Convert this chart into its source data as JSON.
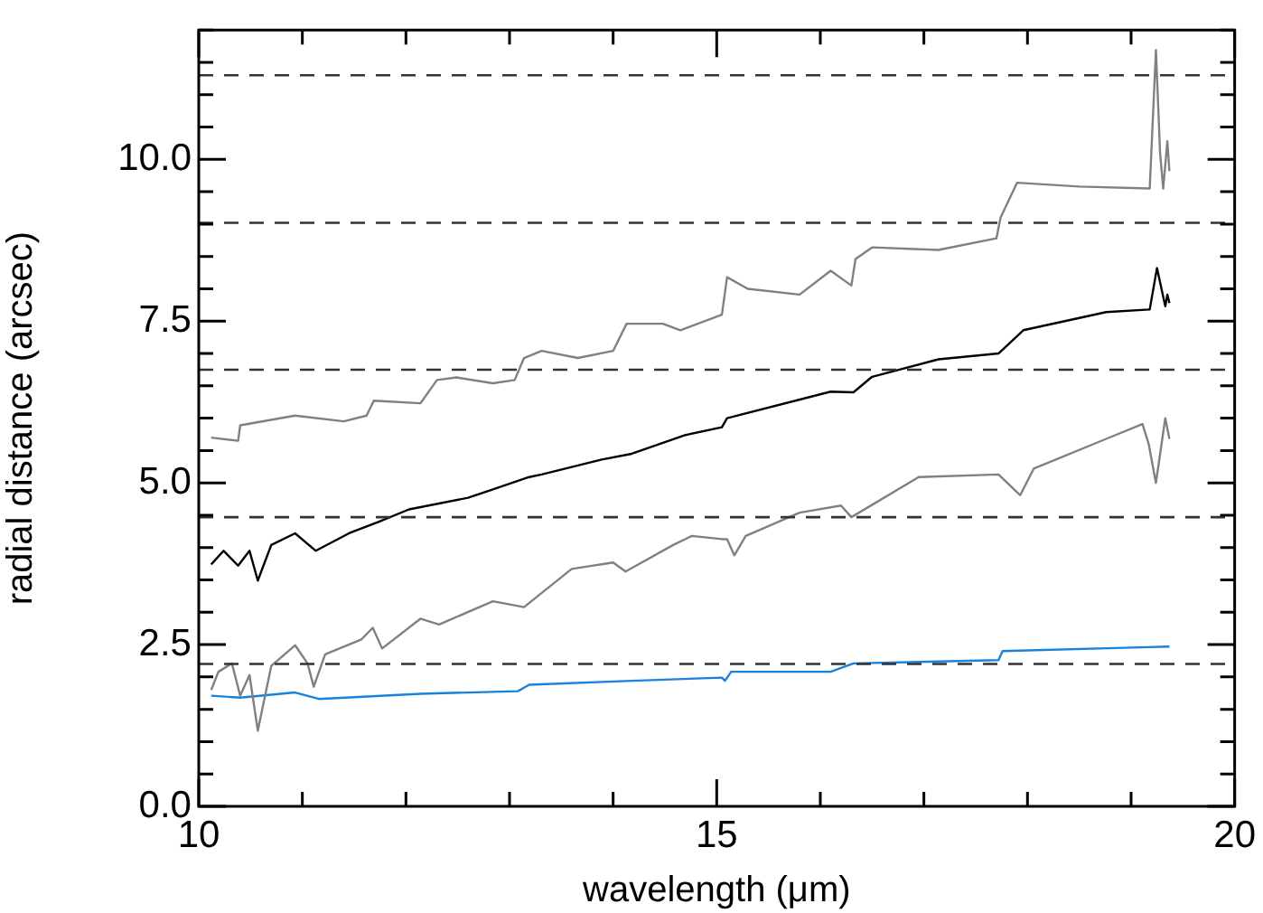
{
  "chart_data": {
    "type": "line",
    "xlabel": "wavelength (μm)",
    "ylabel": "radial distance (arcsec)",
    "xlim": [
      10,
      20
    ],
    "ylim": [
      0,
      12
    ],
    "marker": "none",
    "xticks": [
      10,
      {
        "value": 11,
        "label": null
      },
      {
        "value": 12,
        "label": null
      },
      {
        "value": 13,
        "label": null
      },
      {
        "value": 14,
        "label": null
      },
      15,
      {
        "value": 16,
        "label": null
      },
      {
        "value": 17,
        "label": null
      },
      {
        "value": 18,
        "label": null
      },
      {
        "value": 19,
        "label": null
      },
      20
    ],
    "yticks": [
      {
        "value": 0,
        "label": "0.0"
      },
      {
        "value": 0.5,
        "label": null
      },
      {
        "value": 1,
        "label": null
      },
      {
        "value": 1.5,
        "label": null
      },
      {
        "value": 2,
        "label": null
      },
      2.5,
      {
        "value": 3,
        "label": null
      },
      {
        "value": 3.5,
        "label": null
      },
      {
        "value": 4,
        "label": null
      },
      {
        "value": 4.5,
        "label": null
      },
      {
        "value": 5,
        "label": "5.0"
      },
      {
        "value": 5.5,
        "label": null
      },
      {
        "value": 6,
        "label": null
      },
      {
        "value": 6.5,
        "label": null
      },
      {
        "value": 7,
        "label": null
      },
      7.5,
      {
        "value": 8,
        "label": null
      },
      {
        "value": 8.5,
        "label": null
      },
      {
        "value": 9,
        "label": null
      },
      {
        "value": 9.5,
        "label": null
      },
      {
        "value": 10,
        "label": "10.0"
      },
      {
        "value": 10.5,
        "label": null
      },
      {
        "value": 11,
        "label": null
      },
      {
        "value": 11.5,
        "label": null
      },
      {
        "value": 12,
        "label": null
      }
    ],
    "series": [
      {
        "color": "#808080",
        "x": [
          10.12,
          10.38,
          10.4,
          10.93,
          11.4,
          11.62,
          11.69,
          12.14,
          12.3,
          12.49,
          12.84,
          13.05,
          13.14,
          13.31,
          13.66,
          14.0,
          14.13,
          14.48,
          14.65,
          15.05,
          15.1,
          15.3,
          15.8,
          16.1,
          16.3,
          16.34,
          16.5,
          17.14,
          17.7,
          17.74,
          17.9,
          18.5,
          19.18,
          19.24,
          19.28,
          19.31,
          19.35,
          19.37
        ],
        "values": [
          5.7,
          5.65,
          5.89,
          6.04,
          5.95,
          6.04,
          6.27,
          6.23,
          6.59,
          6.63,
          6.54,
          6.59,
          6.93,
          7.04,
          6.93,
          7.04,
          7.46,
          7.46,
          7.36,
          7.6,
          8.18,
          8.0,
          7.91,
          8.28,
          8.05,
          8.46,
          8.64,
          8.6,
          8.78,
          9.1,
          9.64,
          9.58,
          9.55,
          11.69,
          10.1,
          9.55,
          10.28,
          9.82
        ]
      },
      {
        "color": "#000000",
        "x": [
          10.12,
          10.24,
          10.38,
          10.49,
          10.57,
          10.7,
          10.93,
          11.13,
          11.45,
          11.74,
          12.03,
          12.6,
          12.84,
          13.19,
          13.31,
          13.89,
          14.18,
          14.7,
          15.05,
          15.1,
          16.1,
          16.32,
          16.5,
          17.14,
          17.72,
          17.96,
          18.76,
          19.18,
          19.25,
          19.33,
          19.35,
          19.37
        ],
        "values": [
          3.74,
          3.95,
          3.72,
          3.95,
          3.49,
          4.04,
          4.22,
          3.95,
          4.22,
          4.4,
          4.59,
          4.77,
          4.9,
          5.09,
          5.13,
          5.36,
          5.45,
          5.74,
          5.86,
          6.0,
          6.41,
          6.4,
          6.64,
          6.91,
          7.0,
          7.36,
          7.64,
          7.68,
          8.32,
          7.73,
          7.91,
          7.78
        ]
      },
      {
        "color": "#808080",
        "x": [
          10.12,
          10.19,
          10.32,
          10.4,
          10.49,
          10.57,
          10.7,
          10.93,
          11.05,
          11.11,
          11.22,
          11.57,
          11.68,
          11.77,
          12.14,
          12.32,
          12.84,
          13.14,
          13.6,
          14.0,
          14.12,
          14.58,
          14.76,
          15.05,
          15.1,
          15.17,
          15.28,
          15.8,
          16.2,
          16.3,
          16.95,
          17.72,
          17.93,
          18.06,
          18.76,
          19.11,
          19.17,
          19.24,
          19.33,
          19.37
        ],
        "values": [
          1.8,
          2.08,
          2.21,
          1.71,
          2.03,
          1.17,
          2.17,
          2.49,
          2.21,
          1.85,
          2.35,
          2.58,
          2.76,
          2.44,
          2.9,
          2.81,
          3.17,
          3.08,
          3.67,
          3.77,
          3.63,
          4.04,
          4.18,
          4.13,
          4.13,
          3.88,
          4.18,
          4.54,
          4.65,
          4.47,
          5.09,
          5.13,
          4.81,
          5.22,
          5.68,
          5.91,
          5.6,
          5.0,
          6.0,
          5.68
        ]
      },
      {
        "color": "#1a82dc",
        "x": [
          10.12,
          10.4,
          10.93,
          11.16,
          12.14,
          13.08,
          13.19,
          14.18,
          15.05,
          15.08,
          15.14,
          16.1,
          16.32,
          17.72,
          17.76,
          19.37
        ],
        "values": [
          1.71,
          1.68,
          1.76,
          1.66,
          1.74,
          1.78,
          1.88,
          1.94,
          1.99,
          1.94,
          2.08,
          2.08,
          2.21,
          2.26,
          2.4,
          2.47
        ]
      }
    ],
    "ref_lines": [
      {
        "axis": "y",
        "value": 2.2,
        "line_style": "dashed",
        "color": "#333333"
      },
      {
        "axis": "y",
        "value": 4.47,
        "line_style": "dashed",
        "color": "#333333"
      },
      {
        "axis": "y",
        "value": 6.75,
        "line_style": "dashed",
        "color": "#333333"
      },
      {
        "axis": "y",
        "value": 9.02,
        "line_style": "dashed",
        "color": "#333333"
      },
      {
        "axis": "y",
        "value": 11.3,
        "line_style": "dashed",
        "color": "#333333"
      }
    ]
  }
}
